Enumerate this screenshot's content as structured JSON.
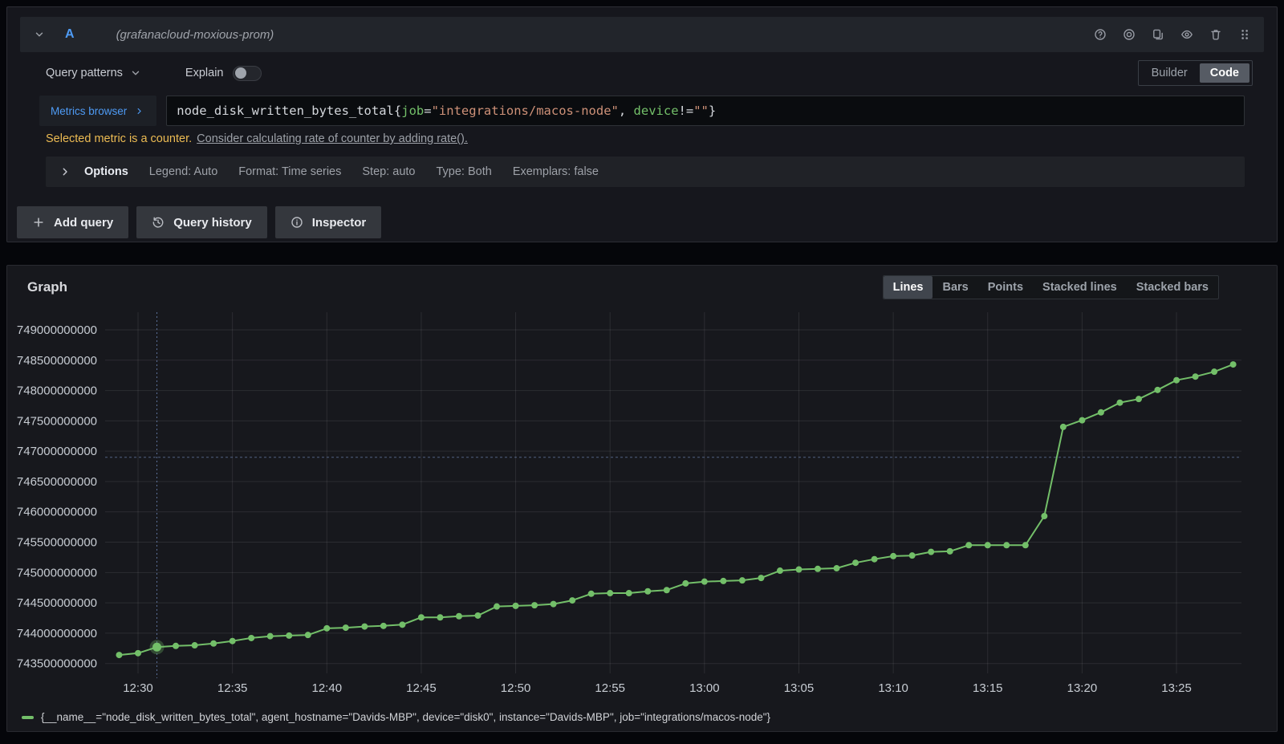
{
  "colors": {
    "series_green": "#73bf69",
    "accent_blue": "#4e9bf5",
    "warning_yellow": "#ecbb53"
  },
  "query_editor": {
    "header": {
      "ref_id": "A",
      "datasource": "(grafanacloud-moxious-prom)",
      "icons": [
        {
          "id": "help-icon",
          "glyph": "help"
        },
        {
          "id": "record-icon",
          "glyph": "record"
        },
        {
          "id": "duplicate-query-icon",
          "glyph": "copy"
        },
        {
          "id": "hide-query-eye-icon",
          "glyph": "eye"
        },
        {
          "id": "delete-query-trash-icon",
          "glyph": "trash"
        },
        {
          "id": "drag-handle-icon",
          "glyph": "grip"
        }
      ]
    },
    "toolbar": {
      "query_patterns": "Query patterns",
      "explain": "Explain",
      "explain_enabled": false,
      "mode_options": [
        "Builder",
        "Code"
      ],
      "mode_active": "Code"
    },
    "query_field": {
      "metrics_browser": "Metrics browser",
      "tokens": [
        {
          "text": "node_disk_written_bytes_total{",
          "type": "plain"
        },
        {
          "text": "job",
          "type": "label"
        },
        {
          "text": "=",
          "type": "plain"
        },
        {
          "text": "\"integrations/macos-node\"",
          "type": "string"
        },
        {
          "text": ", ",
          "type": "plain"
        },
        {
          "text": "device",
          "type": "label"
        },
        {
          "text": "!=",
          "type": "plain"
        },
        {
          "text": "\"\"",
          "type": "string"
        },
        {
          "text": "}",
          "type": "plain"
        }
      ]
    },
    "warning": {
      "text": "Selected metric is a counter.",
      "link": "Consider calculating rate of counter by adding rate()."
    },
    "options_bar": {
      "label": "Options",
      "items": [
        "Legend: Auto",
        "Format: Time series",
        "Step: auto",
        "Type: Both",
        "Exemplars: false"
      ]
    },
    "actions": [
      {
        "id": "add-query-button",
        "glyph": "plus",
        "label": "Add query"
      },
      {
        "id": "query-history-button",
        "glyph": "history",
        "label": "Query history"
      },
      {
        "id": "inspector-button",
        "glyph": "info",
        "label": "Inspector"
      }
    ]
  },
  "graph_panel": {
    "title": "Graph",
    "view_tabs": [
      "Lines",
      "Bars",
      "Points",
      "Stacked lines",
      "Stacked bars"
    ],
    "active_tab": "Lines",
    "legend": "{__name__=\"node_disk_written_bytes_total\", agent_hostname=\"Davids-MBP\", device=\"disk0\", instance=\"Davids-MBP\", job=\"integrations/macos-node\"}"
  },
  "chart_data": {
    "type": "line",
    "title": "Graph",
    "xlabel": "",
    "ylabel": "",
    "grid": true,
    "legend_position": "bottom",
    "ylim": [
      743300000000,
      749300000000
    ],
    "y_ticks": [
      749000000000,
      748500000000,
      748000000000,
      747500000000,
      747000000000,
      746500000000,
      746000000000,
      745500000000,
      745000000000,
      744500000000,
      744000000000,
      743500000000
    ],
    "x_ticks": [
      "12:30",
      "12:35",
      "12:40",
      "12:45",
      "12:50",
      "12:55",
      "13:00",
      "13:05",
      "13:10",
      "13:15",
      "13:20",
      "13:25"
    ],
    "crosshair": {
      "time": "12:31",
      "value": 746900000000
    },
    "highlight_time": "12:31",
    "series": [
      {
        "name": "{__name__=\"node_disk_written_bytes_total\", agent_hostname=\"Davids-MBP\", device=\"disk0\", instance=\"Davids-MBP\", job=\"integrations/macos-node\"}",
        "color": "#73bf69",
        "x": [
          "12:29",
          "12:30",
          "12:31",
          "12:32",
          "12:33",
          "12:34",
          "12:35",
          "12:36",
          "12:37",
          "12:38",
          "12:39",
          "12:40",
          "12:41",
          "12:42",
          "12:43",
          "12:44",
          "12:45",
          "12:46",
          "12:47",
          "12:48",
          "12:49",
          "12:50",
          "12:51",
          "12:52",
          "12:53",
          "12:54",
          "12:55",
          "12:56",
          "12:57",
          "12:58",
          "12:59",
          "13:00",
          "13:01",
          "13:02",
          "13:03",
          "13:04",
          "13:05",
          "13:06",
          "13:07",
          "13:08",
          "13:09",
          "13:10",
          "13:11",
          "13:12",
          "13:13",
          "13:14",
          "13:15",
          "13:16",
          "13:17",
          "13:18",
          "13:19",
          "13:20",
          "13:21",
          "13:22",
          "13:23",
          "13:24",
          "13:25",
          "13:26",
          "13:27",
          "13:28"
        ],
        "values": [
          743640000000,
          743670000000,
          743770000000,
          743790000000,
          743800000000,
          743830000000,
          743870000000,
          743920000000,
          743950000000,
          743960000000,
          743970000000,
          744080000000,
          744090000000,
          744110000000,
          744120000000,
          744140000000,
          744260000000,
          744260000000,
          744280000000,
          744290000000,
          744440000000,
          744450000000,
          744460000000,
          744480000000,
          744540000000,
          744650000000,
          744660000000,
          744660000000,
          744690000000,
          744710000000,
          744820000000,
          744850000000,
          744860000000,
          744870000000,
          744910000000,
          745030000000,
          745050000000,
          745060000000,
          745070000000,
          745160000000,
          745220000000,
          745270000000,
          745280000000,
          745340000000,
          745350000000,
          745450000000,
          745450000000,
          745450000000,
          745450000000,
          745930000000,
          747400000000,
          747510000000,
          747640000000,
          747800000000,
          747860000000,
          748010000000,
          748170000000,
          748230000000,
          748310000000,
          748430000000
        ]
      }
    ]
  }
}
